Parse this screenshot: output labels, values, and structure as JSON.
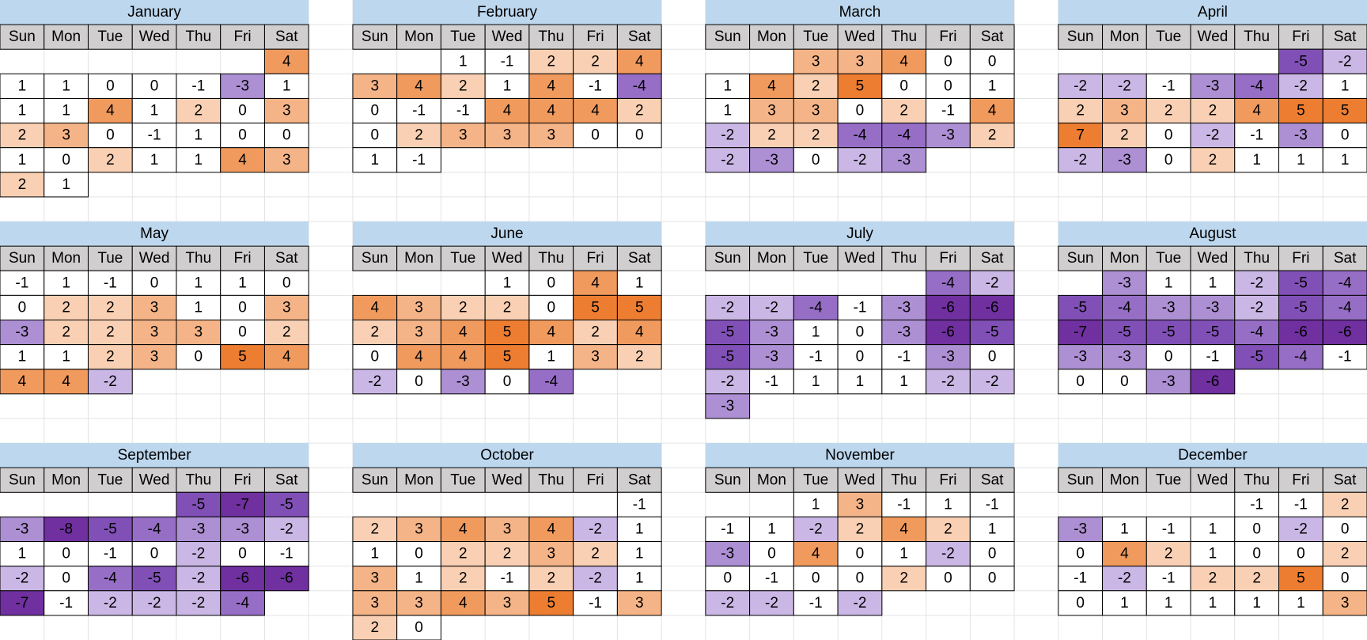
{
  "weekdays": [
    "Sun",
    "Mon",
    "Tue",
    "Wed",
    "Thu",
    "Fri",
    "Sat"
  ],
  "months": [
    {
      "name": "January",
      "weeks": [
        [
          null,
          null,
          null,
          null,
          null,
          null,
          4
        ],
        [
          1,
          1,
          0,
          0,
          -1,
          -3,
          1
        ],
        [
          1,
          1,
          4,
          1,
          2,
          0,
          3
        ],
        [
          2,
          3,
          0,
          -1,
          1,
          0,
          0
        ],
        [
          1,
          0,
          2,
          1,
          1,
          4,
          3
        ],
        [
          2,
          1,
          null,
          null,
          null,
          null,
          null
        ]
      ]
    },
    {
      "name": "February",
      "weeks": [
        [
          null,
          null,
          1,
          -1,
          2,
          2,
          4
        ],
        [
          3,
          4,
          2,
          1,
          4,
          -1,
          -4
        ],
        [
          0,
          -1,
          -1,
          4,
          4,
          4,
          2
        ],
        [
          0,
          2,
          3,
          3,
          3,
          0,
          0
        ],
        [
          1,
          -1,
          null,
          null,
          null,
          null,
          null
        ]
      ]
    },
    {
      "name": "March",
      "weeks": [
        [
          null,
          null,
          3,
          3,
          4,
          0,
          0
        ],
        [
          1,
          4,
          2,
          5,
          0,
          0,
          1
        ],
        [
          1,
          3,
          3,
          0,
          2,
          -1,
          4
        ],
        [
          -2,
          2,
          2,
          -4,
          -4,
          -3,
          2
        ],
        [
          -2,
          -3,
          0,
          -2,
          -3,
          null,
          null
        ]
      ]
    },
    {
      "name": "April",
      "weeks": [
        [
          null,
          null,
          null,
          null,
          null,
          -5,
          -2
        ],
        [
          -2,
          -2,
          -1,
          -3,
          -4,
          -2,
          1
        ],
        [
          2,
          3,
          2,
          2,
          4,
          5,
          5
        ],
        [
          7,
          2,
          0,
          -2,
          -1,
          -3,
          0
        ],
        [
          -2,
          -3,
          0,
          2,
          1,
          1,
          1
        ]
      ]
    },
    {
      "name": "May",
      "weeks": [
        [
          -1,
          1,
          -1,
          0,
          1,
          1,
          0
        ],
        [
          0,
          2,
          2,
          3,
          1,
          0,
          3
        ],
        [
          -3,
          2,
          2,
          3,
          3,
          0,
          2
        ],
        [
          1,
          1,
          2,
          3,
          0,
          5,
          4
        ],
        [
          4,
          4,
          -2,
          null,
          null,
          null,
          null
        ]
      ]
    },
    {
      "name": "June",
      "weeks": [
        [
          null,
          null,
          null,
          1,
          0,
          4,
          1
        ],
        [
          4,
          3,
          2,
          2,
          0,
          5,
          5
        ],
        [
          2,
          3,
          4,
          5,
          4,
          2,
          4
        ],
        [
          0,
          4,
          4,
          5,
          1,
          3,
          2
        ],
        [
          -2,
          0,
          -3,
          0,
          -4,
          null,
          null
        ]
      ]
    },
    {
      "name": "July",
      "weeks": [
        [
          null,
          null,
          null,
          null,
          null,
          -4,
          -2
        ],
        [
          -2,
          -2,
          -4,
          -1,
          -3,
          -6,
          -6
        ],
        [
          -5,
          -3,
          1,
          0,
          -3,
          -6,
          -5
        ],
        [
          -5,
          -3,
          -1,
          0,
          -1,
          -3,
          0
        ],
        [
          -2,
          -1,
          1,
          1,
          1,
          -2,
          -2
        ],
        [
          -3,
          null,
          null,
          null,
          null,
          null,
          null
        ]
      ]
    },
    {
      "name": "August",
      "weeks": [
        [
          null,
          -3,
          1,
          1,
          -2,
          -5,
          -4
        ],
        [
          -5,
          -4,
          -3,
          -3,
          -2,
          -5,
          -4
        ],
        [
          -7,
          -5,
          -5,
          -5,
          -4,
          -6,
          -6
        ],
        [
          -3,
          -3,
          0,
          -1,
          -5,
          -4,
          -1
        ],
        [
          0,
          0,
          -3,
          -6,
          null,
          null,
          null
        ]
      ]
    },
    {
      "name": "September",
      "weeks": [
        [
          null,
          null,
          null,
          null,
          -5,
          -7,
          -5
        ],
        [
          -3,
          -8,
          -5,
          -4,
          -3,
          -3,
          -2
        ],
        [
          1,
          0,
          -1,
          0,
          -2,
          0,
          -1
        ],
        [
          -2,
          0,
          -4,
          -5,
          -2,
          -6,
          -6
        ],
        [
          -7,
          -1,
          -2,
          -2,
          -2,
          -4,
          null
        ]
      ]
    },
    {
      "name": "October",
      "weeks": [
        [
          null,
          null,
          null,
          null,
          null,
          null,
          -1
        ],
        [
          2,
          3,
          4,
          3,
          4,
          -2,
          1
        ],
        [
          1,
          0,
          2,
          2,
          3,
          2,
          1
        ],
        [
          3,
          1,
          2,
          -1,
          2,
          -2,
          1
        ],
        [
          3,
          3,
          4,
          3,
          5,
          -1,
          3
        ],
        [
          2,
          0,
          null,
          null,
          null,
          null,
          null
        ]
      ]
    },
    {
      "name": "November",
      "weeks": [
        [
          null,
          null,
          1,
          3,
          -1,
          1,
          -1
        ],
        [
          -1,
          1,
          -2,
          2,
          4,
          2,
          1
        ],
        [
          -3,
          0,
          4,
          0,
          1,
          -2,
          0
        ],
        [
          0,
          -1,
          0,
          0,
          2,
          0,
          0
        ],
        [
          -2,
          -2,
          -1,
          -2,
          null,
          null,
          null
        ]
      ]
    },
    {
      "name": "December",
      "weeks": [
        [
          null,
          null,
          null,
          null,
          -1,
          -1,
          2
        ],
        [
          -3,
          1,
          -1,
          1,
          0,
          -2,
          0
        ],
        [
          0,
          4,
          2,
          1,
          0,
          0,
          2
        ],
        [
          -1,
          -2,
          -1,
          2,
          2,
          5,
          0
        ],
        [
          0,
          1,
          1,
          1,
          1,
          1,
          3
        ]
      ]
    }
  ]
}
